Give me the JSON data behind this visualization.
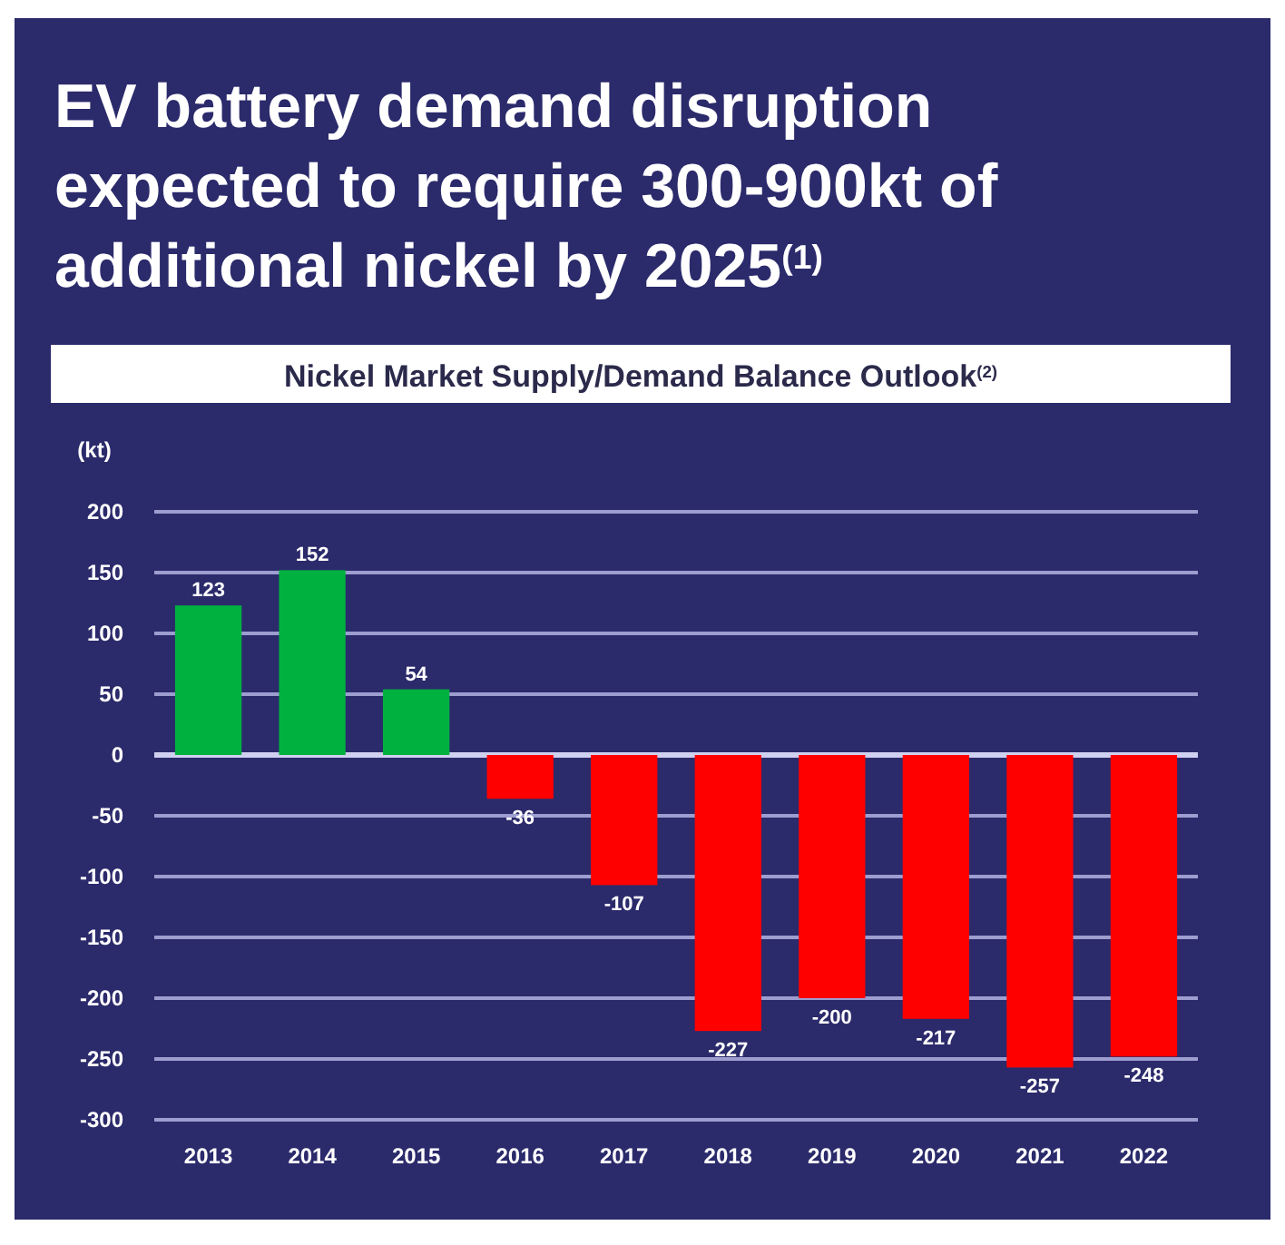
{
  "chart_data": {
    "type": "bar",
    "title": "EV battery demand disruption expected to require 300-900kt of additional nickel by 2025$^{(1)}$",
    "subtitle": "Nickel Market Supply/Demand Balance Outlook$^{(2)}$",
    "ylabel": "(kt)",
    "categories": [
      "2013",
      "2014",
      "2015",
      "2016",
      "2017",
      "2018",
      "2019",
      "2020",
      "2021",
      "2022"
    ],
    "values": [
      123,
      152,
      54,
      -36,
      -107,
      -227,
      -200,
      -217,
      -257,
      -248
    ],
    "colors": [
      "#00b140",
      "#00b140",
      "#00b140",
      "#ff0000",
      "#ff0000",
      "#ff0000",
      "#ff0000",
      "#ff0000",
      "#ff0000",
      "#ff0000"
    ],
    "ylim": [
      -300,
      200
    ],
    "yticks": [
      -300,
      -250,
      -200,
      -150,
      -100,
      -50,
      0,
      50,
      100,
      150,
      200
    ],
    "grid": "y",
    "data_labels": true
  }
}
